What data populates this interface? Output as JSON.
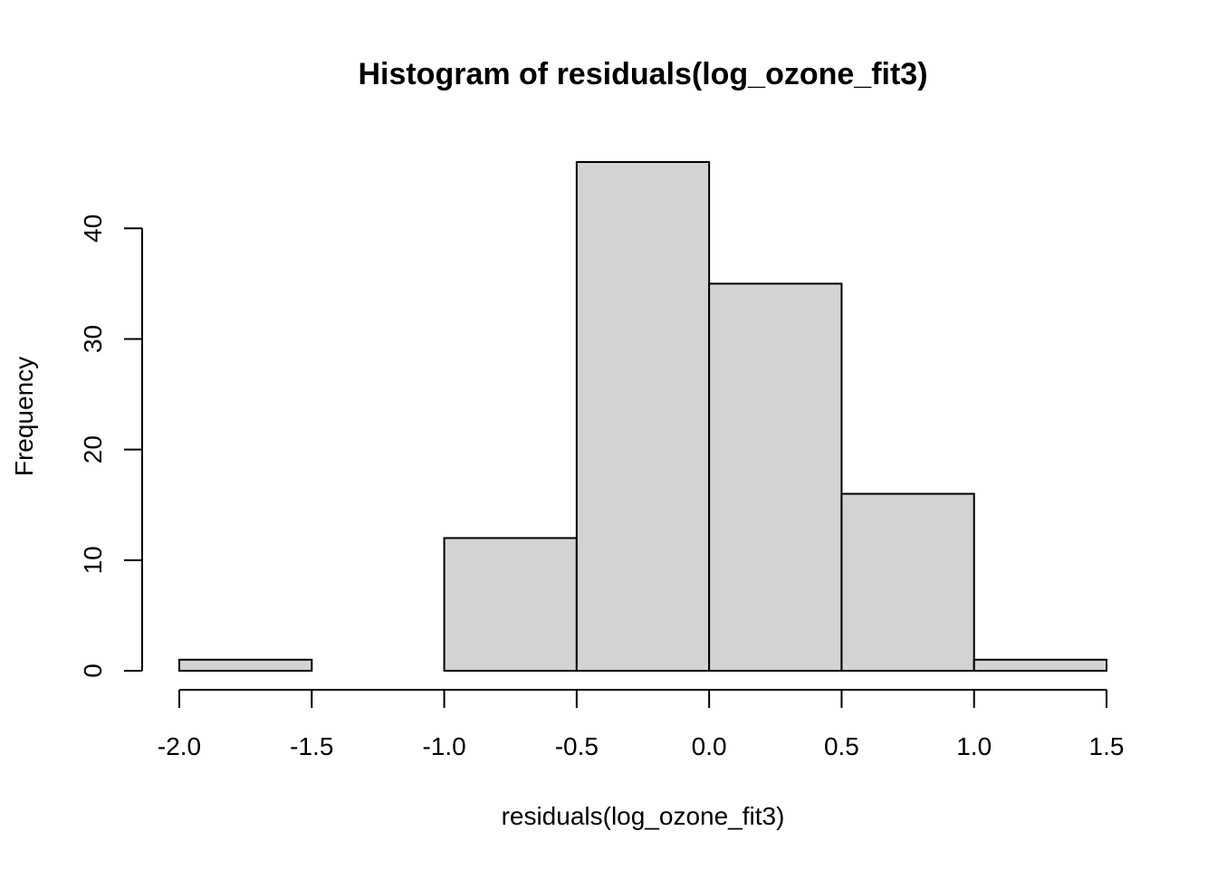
{
  "chart_data": {
    "type": "bar",
    "title": "Histogram of residuals(log_ozone_fit3)",
    "xlabel": "residuals(log_ozone_fit3)",
    "ylabel": "Frequency",
    "bins": [
      {
        "x0": -2.0,
        "x1": -1.5,
        "count": 1
      },
      {
        "x0": -1.5,
        "x1": -1.0,
        "count": 0
      },
      {
        "x0": -1.0,
        "x1": -0.5,
        "count": 12
      },
      {
        "x0": -0.5,
        "x1": 0.0,
        "count": 46
      },
      {
        "x0": 0.0,
        "x1": 0.5,
        "count": 35
      },
      {
        "x0": 0.5,
        "x1": 1.0,
        "count": 16
      },
      {
        "x0": 1.0,
        "x1": 1.5,
        "count": 1
      }
    ],
    "x_ticks": [
      "-2.0",
      "-1.5",
      "-1.0",
      "-0.5",
      "0.0",
      "0.5",
      "1.0",
      "1.5"
    ],
    "x_tick_values": [
      -2.0,
      -1.5,
      -1.0,
      -0.5,
      0.0,
      0.5,
      1.0,
      1.5
    ],
    "y_ticks": [
      "0",
      "10",
      "20",
      "30",
      "40"
    ],
    "y_tick_values": [
      0,
      10,
      20,
      30,
      40
    ],
    "xlim": [
      -2.0,
      1.5
    ],
    "ylim": [
      0,
      46
    ],
    "grid": false,
    "legend": "none",
    "colors": {
      "bar_fill": "#d3d3d3",
      "bar_stroke": "#000000"
    }
  }
}
